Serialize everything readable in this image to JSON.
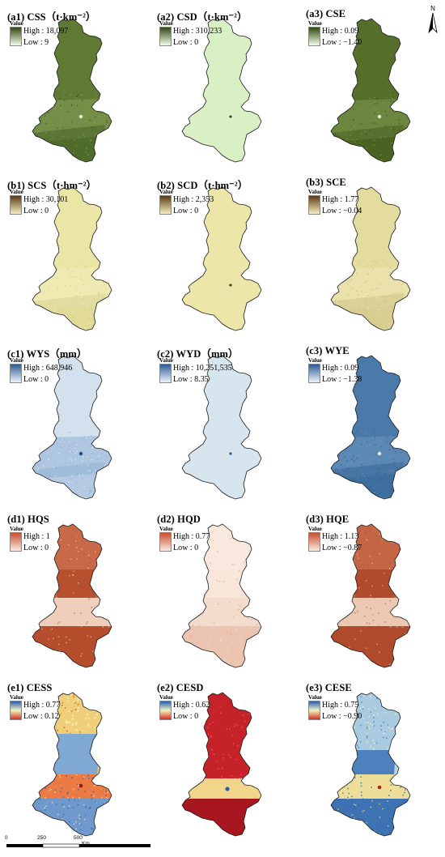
{
  "legend_caption": "Value",
  "panels": [
    {
      "id": "a1",
      "title": "(a1) CSS（t·km⁻²）",
      "high": "High : 18,097",
      "low": "Low : 9",
      "ramp": [
        "#2f4a12",
        "#f4fbe8"
      ],
      "fill_base": "#5f7a33",
      "fill_light": "#86a05a",
      "fill_dark": "#3f5a1e",
      "pattern": "south-dark"
    },
    {
      "id": "a2",
      "title": "(a2) CSD（t·km⁻²）",
      "high": "High : 310,233",
      "low": "Low : 0",
      "ramp": [
        "#2f4a12",
        "#f4fbe8"
      ],
      "fill_base": "#d9f0c4",
      "fill_light": "#e6f6d6",
      "fill_dark": "#b7d99a",
      "pattern": "uniform"
    },
    {
      "id": "a3",
      "title": "(a3) CSE",
      "high": "High : 0.09",
      "low": "Low : −1.40",
      "ramp": [
        "#2f4a12",
        "#f4fbe8"
      ],
      "fill_base": "#556f2b",
      "fill_light": "#7e9a50",
      "fill_dark": "#3d5519",
      "pattern": "south-dark"
    },
    {
      "id": "b1",
      "title": "(b1) SCS（t·hm⁻²）",
      "high": "High : 30,101",
      "low": "Low : 0",
      "ramp": [
        "#5a3a14",
        "#f5efc0"
      ],
      "fill_base": "#ebe6a6",
      "fill_light": "#f1edbc",
      "fill_dark": "#d4cc8a",
      "pattern": "south-texture"
    },
    {
      "id": "b2",
      "title": "(b2) SCD（t·hm⁻²）",
      "high": "High : 2,353",
      "low": "Low : 0",
      "ramp": [
        "#5a3a14",
        "#f5efc0"
      ],
      "fill_base": "#ece7a8",
      "fill_light": "#f2eec0",
      "fill_dark": "#dcd596",
      "pattern": "uniform"
    },
    {
      "id": "b3",
      "title": "(b3) SCE",
      "high": "High : 1.77",
      "low": "Low : −0.04",
      "ramp": [
        "#5a3a14",
        "#f5efc0"
      ],
      "fill_base": "#e4dc9e",
      "fill_light": "#eee8b4",
      "fill_dark": "#c9bd80",
      "pattern": "south-texture"
    },
    {
      "id": "c1",
      "title": "(c1) WYS（mm）",
      "high": "High : 648,946",
      "low": "Low : 0",
      "ramp": [
        "#2c5c93",
        "#eef4fa"
      ],
      "fill_base": "#d3e1ee",
      "fill_light": "#e3ecf5",
      "fill_dark": "#8fb0d3",
      "pattern": "south-blue"
    },
    {
      "id": "c2",
      "title": "(c2) WYD（mm）",
      "high": "High : 10,251,535",
      "low": "Low : 8.35",
      "ramp": [
        "#2c5c93",
        "#eef4fa"
      ],
      "fill_base": "#d7e5ef",
      "fill_light": "#e4edf5",
      "fill_dark": "#b9cfe2",
      "pattern": "uniform"
    },
    {
      "id": "c3",
      "title": "(c3) WYE",
      "high": "High : 0.09",
      "low": "Low : −1.38",
      "ramp": [
        "#2c5c93",
        "#eef4fa"
      ],
      "fill_base": "#4a7aa9",
      "fill_light": "#6a94bf",
      "fill_dark": "#2f5f91",
      "pattern": "south-dark"
    },
    {
      "id": "d1",
      "title": "(d1) HQS",
      "high": "High : 1",
      "low": "Low : 0",
      "ramp": [
        "#c8502e",
        "#fbe9df"
      ],
      "fill_base": "#c86a47",
      "fill_light": "#f3d9c8",
      "fill_dark": "#b34b2a",
      "pattern": "hq"
    },
    {
      "id": "d2",
      "title": "(d2) HQD",
      "high": "High : 0.77",
      "low": "Low : 0",
      "ramp": [
        "#c8502e",
        "#fbe9df"
      ],
      "fill_base": "#f4dccd",
      "fill_light": "#f8e8dd",
      "fill_dark": "#dc9c80",
      "pattern": "hq-light"
    },
    {
      "id": "d3",
      "title": "(d3) HQE",
      "high": "High : 1.13",
      "low": "Low : −0.87",
      "ramp": [
        "#c8502e",
        "#fbe9df"
      ],
      "fill_base": "#c46644",
      "fill_light": "#f1d3c0",
      "fill_dark": "#ad4728",
      "pattern": "hq"
    },
    {
      "id": "e1",
      "title": "(e1) CESS",
      "high": "High : 0.77",
      "low": "Low : 0.12",
      "ramp": [
        "#2b5fae",
        "#f2f2c2",
        "#d7301f"
      ],
      "fill_base": "#f1c66a",
      "fill_light": "#f5e7a6",
      "fill_dark": "#5d8cc8",
      "pattern": "cess"
    },
    {
      "id": "e2",
      "title": "(e2) CESD",
      "high": "High : 0.62",
      "low": "Low : 0",
      "ramp": [
        "#2b5fae",
        "#f2f2c2",
        "#d7301f"
      ],
      "fill_base": "#c5222a",
      "fill_light": "#e8675a",
      "fill_dark": "#a8161f",
      "pattern": "cesd"
    },
    {
      "id": "e3",
      "title": "(e3) CESE",
      "high": "High : 0.75",
      "low": "Low : −0.90",
      "ramp": [
        "#2b5fae",
        "#f2f2c2",
        "#d7301f"
      ],
      "fill_base": "#b9d5e6",
      "fill_light": "#e7eed0",
      "fill_dark": "#3f75b5",
      "pattern": "cese"
    }
  ],
  "north_label": "N",
  "scale": {
    "ticks": [
      "0",
      "250",
      "500"
    ],
    "unit": "Km"
  }
}
